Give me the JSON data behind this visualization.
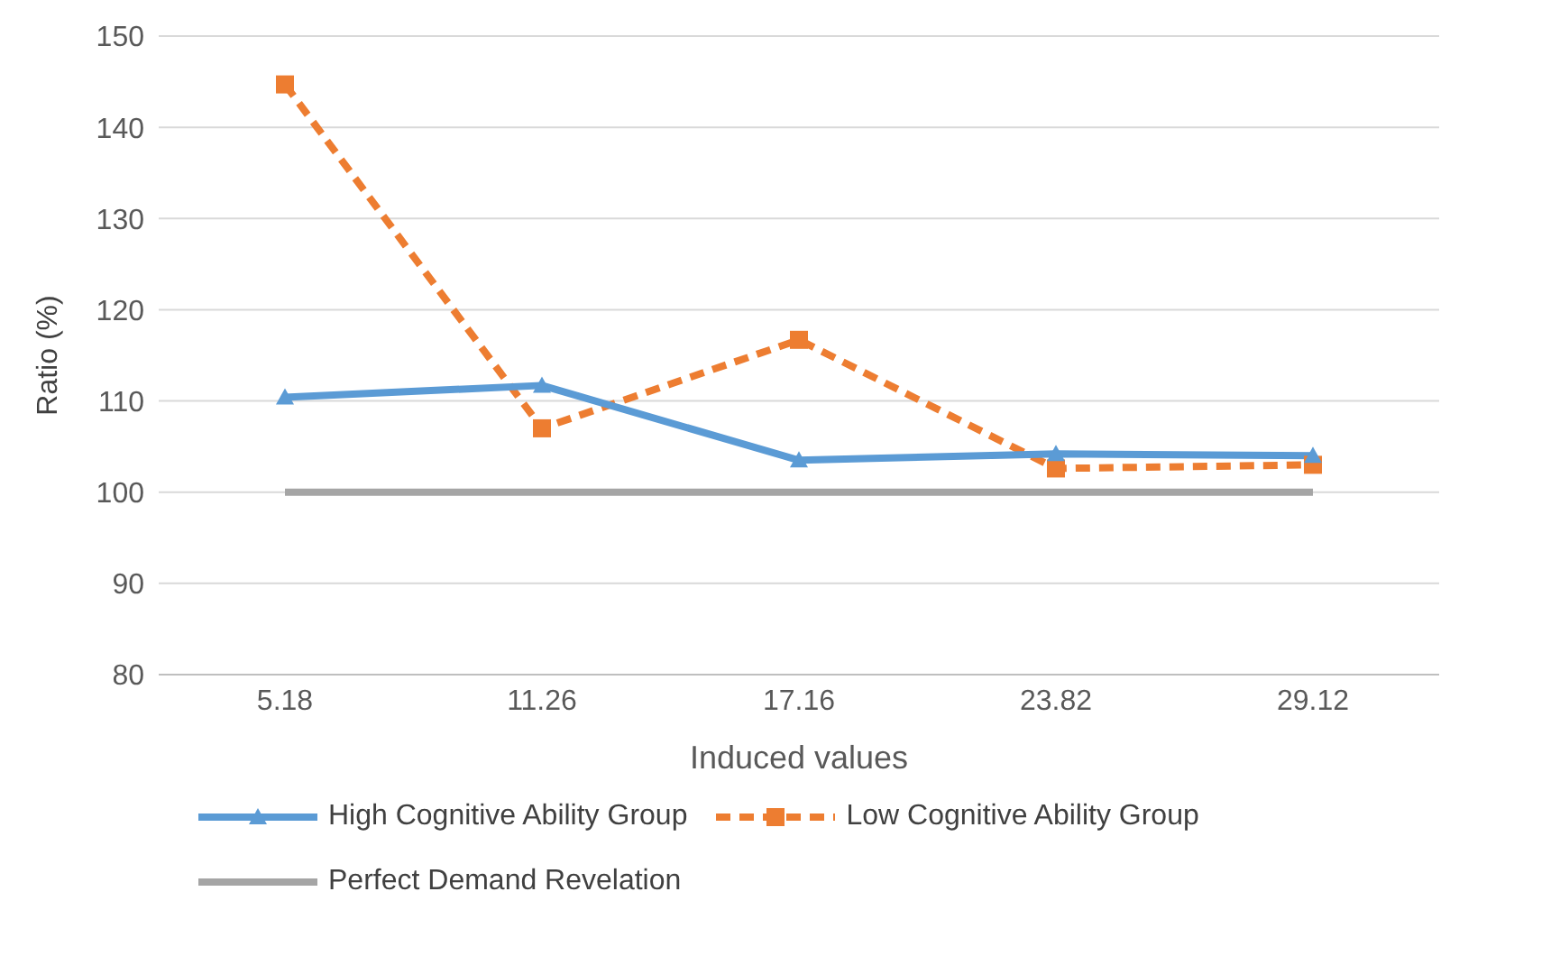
{
  "chart_data": {
    "type": "line",
    "xlabel": "Induced values",
    "ylabel": "Ratio (%)",
    "categories": [
      "5.18",
      "11.26",
      "17.16",
      "23.82",
      "29.12"
    ],
    "ylim": [
      80,
      150
    ],
    "yticks": [
      80,
      90,
      100,
      110,
      120,
      130,
      140,
      150
    ],
    "grid": "y",
    "legend": "bottom",
    "series": [
      {
        "name": "High Cognitive Ability Group",
        "color": "#5b9bd5",
        "values": [
          110.4,
          111.7,
          103.5,
          104.2,
          104
        ],
        "marker": "triangle",
        "line_style": "solid"
      },
      {
        "name": "Low Cognitive Ability Group",
        "color": "#ed7d31",
        "values": [
          144.7,
          107,
          116.7,
          102.6,
          103
        ],
        "marker": "square",
        "line_style": "dashed"
      },
      {
        "name": "Perfect Demand Revelation",
        "color": "#a5a5a5",
        "values": [
          100,
          100,
          100,
          100,
          100
        ],
        "marker": "none",
        "line_style": "solid"
      }
    ]
  }
}
